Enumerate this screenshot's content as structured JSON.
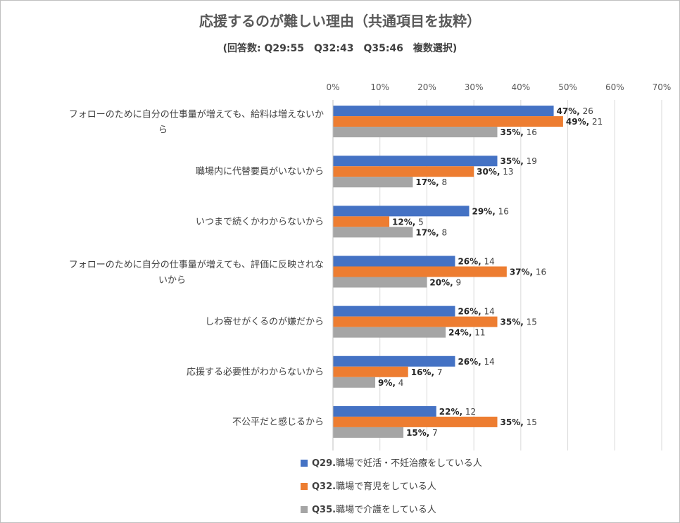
{
  "chart_data": {
    "type": "bar",
    "orientation": "horizontal",
    "title": "応援するのが難しい理由（共通項目を抜粋）",
    "subtitle": "(回答数: Q29:55　Q32:43　Q35:46　複数選択)",
    "xlim": [
      0,
      70
    ],
    "x_ticks": [
      "0%",
      "10%",
      "20%",
      "30%",
      "40%",
      "50%",
      "60%",
      "70%"
    ],
    "grid": "vertical",
    "legend_position": "bottom",
    "categories": [
      [
        "フォローのために自分の仕事量が増えても、給料は増えないか",
        "ら"
      ],
      [
        "職場内に代替要員がいないから"
      ],
      [
        "いつまで続くかわからないから"
      ],
      [
        "フォローのために自分の仕事量が増えても、評価に反映されな",
        "いから"
      ],
      [
        "しわ寄せがくるのが嫌だから"
      ],
      [
        "応援する必要性がわからないから"
      ],
      [
        "不公平だと感じるから"
      ]
    ],
    "series": [
      {
        "code": "Q29.",
        "name": "職場で妊活・不妊治療をしている人",
        "color": "#4472C4",
        "values": [
          47,
          35,
          29,
          26,
          26,
          26,
          22
        ],
        "counts": [
          26,
          19,
          16,
          14,
          14,
          14,
          12
        ]
      },
      {
        "code": "Q32.",
        "name": "職場で育児をしている人",
        "color": "#ED7D31",
        "values": [
          49,
          30,
          12,
          37,
          35,
          16,
          35
        ],
        "counts": [
          21,
          13,
          5,
          16,
          15,
          7,
          15
        ]
      },
      {
        "code": "Q35.",
        "name": "職場で介護をしている人",
        "color": "#A5A5A5",
        "values": [
          35,
          17,
          17,
          20,
          24,
          9,
          15
        ],
        "counts": [
          16,
          8,
          8,
          9,
          11,
          4,
          7
        ]
      }
    ]
  }
}
